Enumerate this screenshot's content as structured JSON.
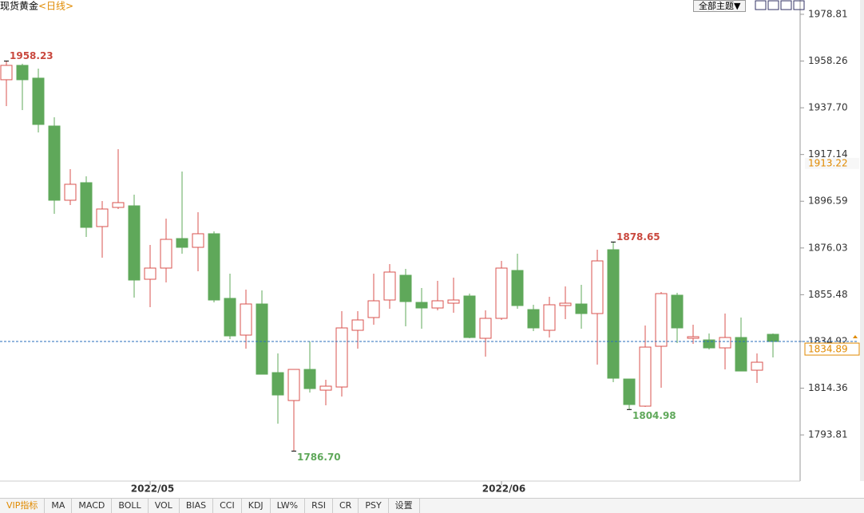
{
  "title": "现货黄金",
  "subtitle": "<日线>",
  "theme_button": "全部主题▼",
  "toolbar": [
    "VIP指标",
    "MA",
    "MACD",
    "BOLL",
    "VOL",
    "BIAS",
    "CCI",
    "KDJ",
    "LW%",
    "RSI",
    "CR",
    "PSY",
    "设置"
  ],
  "chart_data": {
    "type": "candlestick",
    "categories": [
      null,
      null,
      null,
      null,
      null,
      null,
      null,
      null,
      null,
      "2022/05",
      null,
      null,
      null,
      null,
      null,
      null,
      null,
      null,
      null,
      null,
      null,
      null,
      null,
      null,
      null,
      null,
      null,
      null,
      null,
      null,
      null,
      "2022/06",
      null,
      null,
      null,
      null,
      null,
      null,
      null,
      null,
      null,
      null,
      null,
      null,
      null,
      null,
      null,
      null,
      null
    ],
    "open": [
      1950.03,
      1956.35,
      1950.73,
      1929.67,
      1897.03,
      1904.75,
      1885.45,
      1893.87,
      1894.57,
      1862.28,
      1867.19,
      1880.18,
      1876.32,
      1882.29,
      1853.86,
      1837.71,
      1851.4,
      1821.21,
      1808.93,
      1822.62,
      1813.49,
      1814.89,
      1839.82,
      1845.43,
      1853.15,
      1864.03,
      1852.1,
      1849.64,
      1851.75,
      1854.91,
      1836.31,
      1845.08,
      1866.14,
      1848.94,
      1839.82,
      1850.7,
      1851.4,
      1847.19,
      1875.27,
      1818.4,
      1806.47,
      1832.8,
      1855.26,
      1836.31,
      1835.6,
      1832.09,
      1836.66,
      1822.27,
      1838.06
    ],
    "high": [
      1958.23,
      1957.05,
      1954.94,
      1933.53,
      1910.72,
      1907.56,
      1896.68,
      1919.49,
      1899.49,
      1877.37,
      1888.96,
      1909.66,
      1891.76,
      1883.34,
      1864.74,
      1857.72,
      1857.37,
      1829.64,
      1822.62,
      1834.9,
      1818.05,
      1848.24,
      1848.24,
      1864.74,
      1868.95,
      1866.84,
      1858.42,
      1861.58,
      1862.98,
      1855.96,
      1848.59,
      1870.35,
      1873.51,
      1851.05,
      1854.56,
      1859.12,
      1859.82,
      1875.27,
      1878.65,
      1818.4,
      1841.92,
      1856.66,
      1856.31,
      1842.27,
      1838.41,
      1847.19,
      1845.43,
      1829.64,
      1838.41
    ],
    "low": [
      1938.45,
      1936.69,
      1926.86,
      1891.06,
      1894.92,
      1880.88,
      1871.76,
      1893.17,
      1854.21,
      1849.99,
      1860.88,
      1873.51,
      1865.79,
      1852.1,
      1835.95,
      1831.74,
      1820.51,
      1798.75,
      1786.7,
      1812.44,
      1806.82,
      1810.68,
      1831.74,
      1842.27,
      1849.29,
      1841.57,
      1840.52,
      1848.59,
      1847.54,
      1836.31,
      1828.23,
      1844.38,
      1849.29,
      1839.46,
      1836.66,
      1844.73,
      1840.52,
      1824.72,
      1817.0,
      1804.98,
      1806.12,
      1814.54,
      1834.2,
      1833.85,
      1831.39,
      1822.62,
      1821.91,
      1816.65,
      1827.88
    ],
    "close": [
      1956.35,
      1950.03,
      1930.37,
      1897.03,
      1904.05,
      1885.09,
      1893.17,
      1895.98,
      1861.93,
      1867.19,
      1879.83,
      1876.32,
      1882.29,
      1853.15,
      1837.36,
      1851.4,
      1820.51,
      1811.38,
      1822.62,
      1814.19,
      1815.25,
      1840.87,
      1844.38,
      1852.8,
      1865.44,
      1852.45,
      1849.64,
      1852.8,
      1853.15,
      1836.66,
      1845.08,
      1867.19,
      1850.7,
      1840.87,
      1851.05,
      1851.75,
      1847.19,
      1870.35,
      1818.76,
      1807.17,
      1832.44,
      1855.96,
      1840.87,
      1837.01,
      1832.09,
      1836.66,
      1821.91,
      1825.78,
      1834.89
    ],
    "up_color": "#d9534f",
    "down_color": "#5fa85a",
    "ylim": [
      1773.5,
      1985.1
    ],
    "yticks": [
      1978.81,
      1958.26,
      {
        "value": 1937.7,
        "label": "1937.70"
      },
      1917.14,
      1896.59,
      1876.03,
      1855.48,
      1834.92,
      1814.36,
      1793.81
    ],
    "high_labels": [
      1958.23,
      1878.65
    ],
    "low_labels": [
      {
        "value": 1786.7,
        "label": "1786.70"
      },
      1804.98
    ],
    "last_price": 1834.89,
    "last_price_color": "#e08a00",
    "price_line_color": "#2a6ebb",
    "marker_price": 1913.22,
    "grid": false
  }
}
